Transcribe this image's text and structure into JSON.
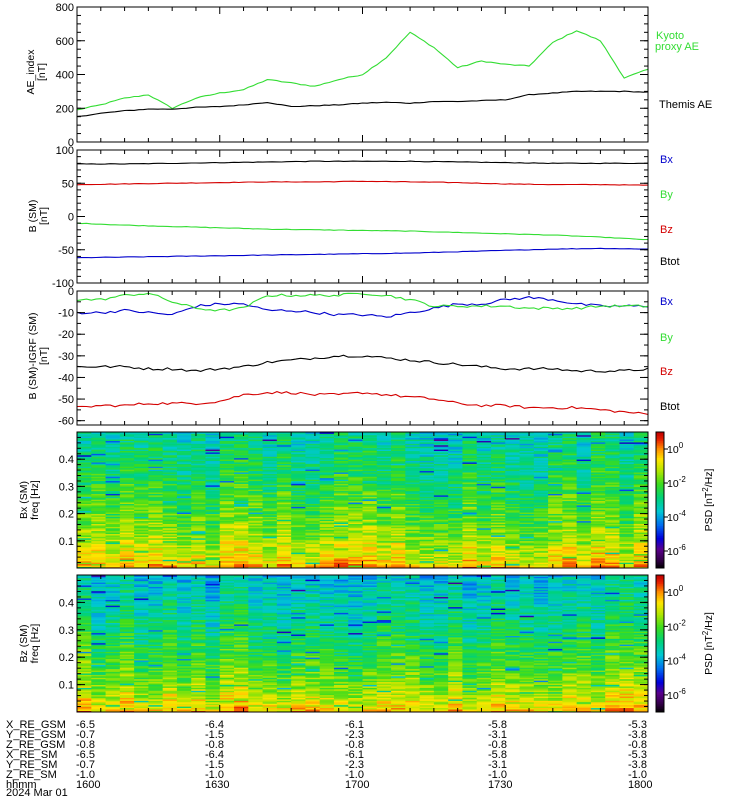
{
  "colors": {
    "black": "#000000",
    "red": "#d40000",
    "green": "#33dd33",
    "blue": "#0000cc"
  },
  "chart_data": [
    {
      "type": "line",
      "ylabel": "AE_index [nT]",
      "ylim": [
        0,
        800
      ],
      "yticks": [
        "0",
        "200",
        "400",
        "600",
        "800"
      ],
      "x": [
        1600,
        1605,
        1610,
        1615,
        1620,
        1625,
        1630,
        1635,
        1640,
        1645,
        1650,
        1655,
        1700,
        1705,
        1710,
        1715,
        1720,
        1725,
        1730,
        1735,
        1740,
        1745,
        1750,
        1755,
        1800
      ],
      "series": [
        {
          "name": "Kyoto proxy AE",
          "color": "green",
          "values": [
            190,
            220,
            260,
            280,
            200,
            260,
            290,
            310,
            370,
            350,
            330,
            370,
            400,
            500,
            650,
            560,
            440,
            480,
            460,
            450,
            590,
            660,
            600,
            380,
            430
          ]
        },
        {
          "name": "Themis AE",
          "color": "black",
          "values": [
            150,
            170,
            185,
            195,
            195,
            205,
            210,
            220,
            235,
            210,
            215,
            220,
            230,
            235,
            230,
            240,
            240,
            245,
            250,
            280,
            290,
            300,
            300,
            300,
            295
          ]
        }
      ]
    },
    {
      "type": "line",
      "ylabel": "B (SM) [nT]",
      "ylim": [
        -100,
        100
      ],
      "yticks": [
        "-100",
        "-50",
        "0",
        "50",
        "100"
      ],
      "x": [
        1600,
        1610,
        1620,
        1630,
        1640,
        1650,
        1700,
        1710,
        1720,
        1730,
        1740,
        1750,
        1800
      ],
      "series": [
        {
          "name": "Bx",
          "color": "blue",
          "values": [
            -62,
            -61,
            -60,
            -59,
            -58,
            -57,
            -56,
            -55,
            -53,
            -51,
            -49,
            -48,
            -49
          ]
        },
        {
          "name": "By",
          "color": "green",
          "values": [
            -10,
            -13,
            -15,
            -17,
            -19,
            -20,
            -21,
            -22,
            -24,
            -26,
            -28,
            -31,
            -35
          ]
        },
        {
          "name": "Bz",
          "color": "red",
          "values": [
            48,
            49,
            50,
            51,
            52,
            52,
            53,
            52,
            51,
            49,
            48,
            48,
            47
          ]
        },
        {
          "name": "Btot",
          "color": "black",
          "values": [
            79,
            79,
            80,
            81,
            82,
            83,
            83,
            83,
            82,
            81,
            80,
            80,
            80
          ]
        }
      ]
    },
    {
      "type": "line",
      "ylabel": "B (SM)-IGRF (SM) [nT]",
      "ylim": [
        -62,
        0
      ],
      "yticks": [
        "-60",
        "-50",
        "-40",
        "-30",
        "-20",
        "-10",
        "0"
      ],
      "x": [
        1600,
        1605,
        1610,
        1615,
        1620,
        1625,
        1630,
        1635,
        1640,
        1645,
        1650,
        1655,
        1700,
        1705,
        1710,
        1715,
        1720,
        1725,
        1730,
        1735,
        1740,
        1745,
        1750,
        1755,
        1800
      ],
      "series": [
        {
          "name": "Bx",
          "color": "blue",
          "values": [
            -10,
            -10,
            -9,
            -10,
            -11,
            -7,
            -6,
            -6,
            -9,
            -9,
            -10,
            -11,
            -11,
            -12,
            -10,
            -8,
            -6,
            -6,
            -4,
            -3,
            -4,
            -6,
            -7,
            -7,
            -7
          ]
        },
        {
          "name": "By",
          "color": "green",
          "values": [
            -4,
            -4,
            -2,
            -1,
            -5,
            -8,
            -9,
            -8,
            -2,
            -2,
            -2,
            -2,
            -1,
            -2,
            -4,
            -7,
            -7,
            -7,
            -7,
            -8,
            -8,
            -8,
            -7,
            -7,
            -7
          ]
        },
        {
          "name": "Bz",
          "color": "red",
          "values": [
            -54,
            -53,
            -53,
            -52,
            -52,
            -52,
            -51,
            -48,
            -47,
            -47,
            -48,
            -48,
            -47,
            -48,
            -49,
            -50,
            -52,
            -53,
            -53,
            -54,
            -54,
            -54,
            -55,
            -56,
            -57
          ]
        },
        {
          "name": "Btot",
          "color": "black",
          "values": [
            -35,
            -35,
            -35,
            -36,
            -36,
            -37,
            -36,
            -35,
            -33,
            -32,
            -31,
            -30,
            -30,
            -31,
            -32,
            -33,
            -34,
            -35,
            -36,
            -36,
            -36,
            -37,
            -37,
            -37,
            -36
          ]
        }
      ]
    },
    {
      "type": "heatmap",
      "ylabel": "Bx (SM) freq [Hz]",
      "ylim": [
        0,
        0.5
      ],
      "yticks": [
        "0.1",
        "0.2",
        "0.3",
        "0.4"
      ],
      "colorbar_label": "PSD [nT^2/Hz]",
      "colorbar_ticks": [
        "10^0",
        "10^-2",
        "10^-4",
        "10^-6"
      ],
      "colorbar_range_log10": [
        -7,
        1
      ],
      "low_freq_log10": 0.0,
      "high_freq_log10": -3.2
    },
    {
      "type": "heatmap",
      "ylabel": "Bz (SM) freq [Hz]",
      "ylim": [
        0,
        0.5
      ],
      "yticks": [
        "0.1",
        "0.2",
        "0.3",
        "0.4"
      ],
      "colorbar_label": "PSD [nT^2/Hz]",
      "colorbar_ticks": [
        "10^0",
        "10^-2",
        "10^-4",
        "10^-6"
      ],
      "colorbar_range_log10": [
        -7,
        1
      ],
      "low_freq_log10": 0.0,
      "high_freq_log10": -3.6
    }
  ],
  "ephemeris": {
    "rows": [
      {
        "label": "X_RE_GSM",
        "values": [
          "-6.5",
          "-6.4",
          "-6.1",
          "-5.8",
          "-5.3"
        ]
      },
      {
        "label": "Y_RE_GSM",
        "values": [
          "-0.7",
          "-1.5",
          "-2.3",
          "-3.1",
          "-3.8"
        ]
      },
      {
        "label": "Z_RE_GSM",
        "values": [
          "-0.8",
          "-0.8",
          "-0.8",
          "-0.8",
          "-0.8"
        ]
      },
      {
        "label": "X_RE_SM",
        "values": [
          "-6.5",
          "-6.4",
          "-6.1",
          "-5.8",
          "-5.3"
        ]
      },
      {
        "label": "Y_RE_SM",
        "values": [
          "-0.7",
          "-1.5",
          "-2.3",
          "-3.1",
          "-3.8"
        ]
      },
      {
        "label": "Z_RE_SM",
        "values": [
          "-1.0",
          "-1.0",
          "-1.0",
          "-1.0",
          "-1.0"
        ]
      },
      {
        "label": "hhmm",
        "values": [
          "1600",
          "1630",
          "1700",
          "1730",
          "1800"
        ]
      }
    ],
    "date": "2024 Mar 01"
  }
}
